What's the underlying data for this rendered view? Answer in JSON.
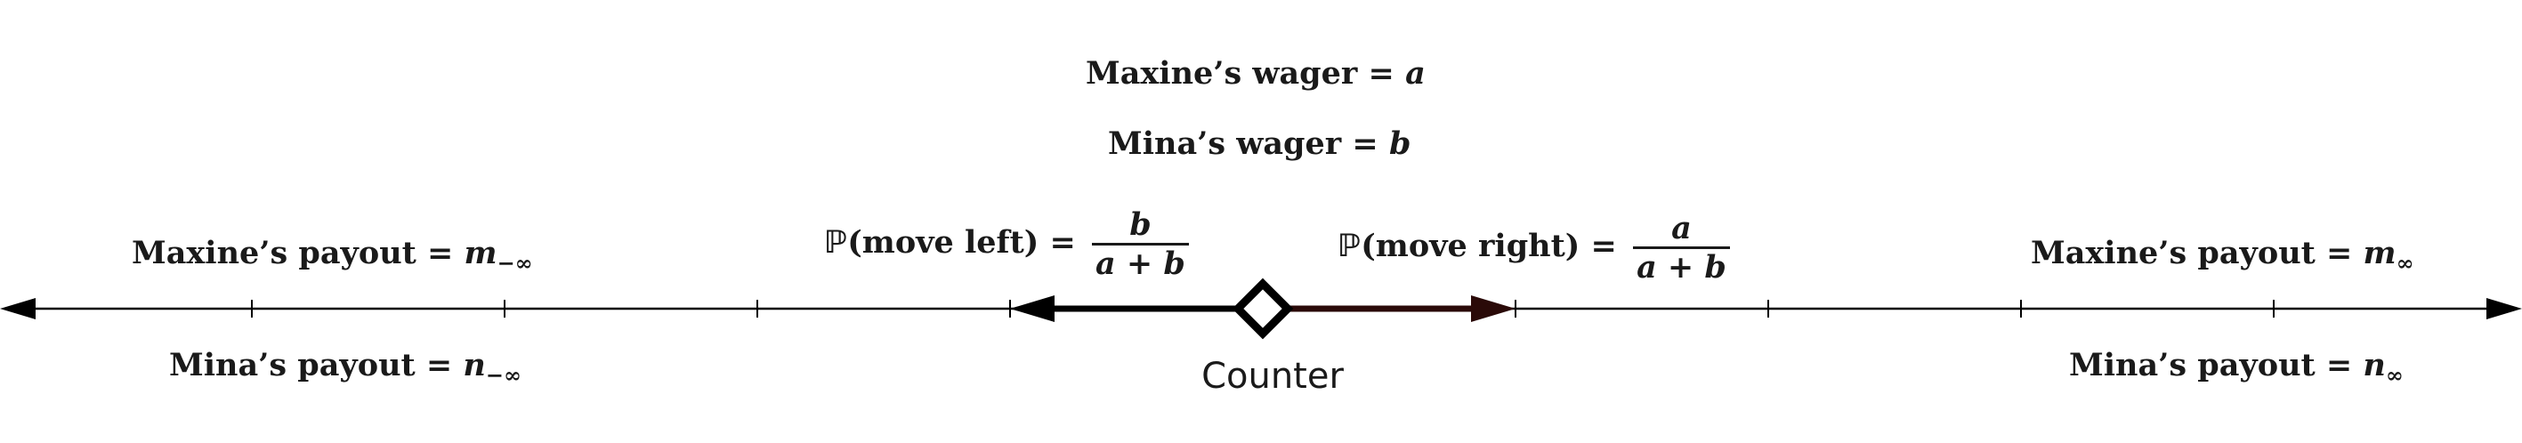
{
  "top": {
    "maxine_wager": {
      "text": "Maxine’s wager = ",
      "var": "a"
    },
    "mina_wager": {
      "text": "Mina’s wager = ",
      "var": "b"
    }
  },
  "left_end": {
    "maxine_payout": {
      "text": "Maxine’s payout = ",
      "var": "m",
      "sub": "−∞"
    },
    "mina_payout": {
      "text": "Mina’s payout = ",
      "var": "n",
      "sub": "−∞"
    }
  },
  "right_end": {
    "maxine_payout": {
      "text": "Maxine’s payout = ",
      "var": "m",
      "sub": "∞"
    },
    "mina_payout": {
      "text": "Mina’s payout = ",
      "var": "n",
      "sub": "∞"
    }
  },
  "prob_left": {
    "symbol": "ℙ",
    "text": "(move left) = ",
    "numerator": "b",
    "denominator": "a + b"
  },
  "prob_right": {
    "symbol": "ℙ",
    "text": "(move right) = ",
    "numerator": "a",
    "denominator": "a + b"
  },
  "counter_label": "Counter",
  "colors": {
    "left_arrow": "#000000",
    "right_arrow": "#2a0a08",
    "axis": "#000000"
  }
}
